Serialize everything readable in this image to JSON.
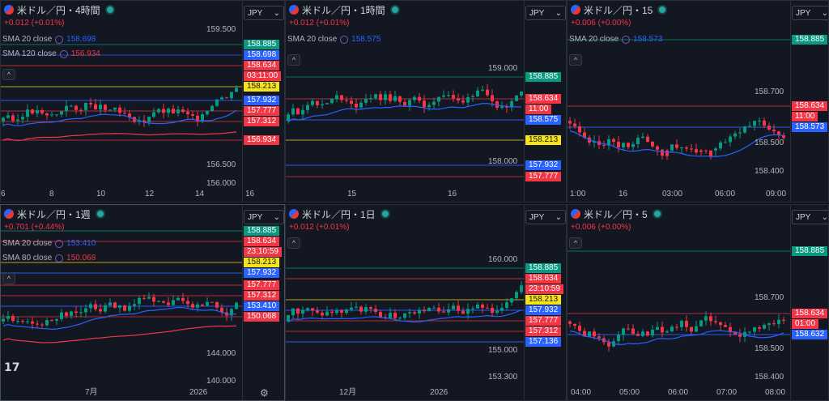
{
  "panes": [
    {
      "id": "p4h",
      "title": "米ドル／円・4時間",
      "change": "+0.012 (+0.01%)",
      "indicators": [
        {
          "label": "SMA 20 close",
          "value": "158.698",
          "color": "#2962ff"
        },
        {
          "label": "SMA 120 close",
          "value": "156.934",
          "color": "#f23645"
        }
      ],
      "currency": "JPY",
      "axis_prices": [
        "159.500",
        "156.500",
        "156.000"
      ],
      "tags": [
        {
          "text": "158.885",
          "kind": "green"
        },
        {
          "text": "158.698",
          "kind": "blue"
        },
        {
          "text": "158.634",
          "kind": "red"
        },
        {
          "text": "03:11:00",
          "kind": "red"
        },
        {
          "text": "158.213",
          "kind": "yellow"
        },
        {
          "text": "157.932",
          "kind": "blue"
        },
        {
          "text": "157.777",
          "kind": "red"
        },
        {
          "text": "157.312",
          "kind": "red"
        },
        {
          "text": "156.934",
          "kind": "red"
        }
      ],
      "time_labels": [
        "6",
        "8",
        "10",
        "12",
        "14",
        "16"
      ]
    },
    {
      "id": "p1h",
      "title": "米ドル／円・1時間",
      "change": "+0.012 (+0.01%)",
      "indicators": [
        {
          "label": "SMA 20 close",
          "value": "158.575",
          "color": "#2962ff"
        }
      ],
      "currency": "JPY",
      "axis_prices": [
        "159.000",
        "158.000"
      ],
      "tags": [
        {
          "text": "158.885",
          "kind": "green"
        },
        {
          "text": "158.634",
          "kind": "red"
        },
        {
          "text": "11:00",
          "kind": "red"
        },
        {
          "text": "158.575",
          "kind": "blue"
        },
        {
          "text": "158.213",
          "kind": "yellow"
        },
        {
          "text": "157.932",
          "kind": "blue"
        },
        {
          "text": "157.777",
          "kind": "red"
        }
      ],
      "time_labels": [
        "15",
        "16"
      ]
    },
    {
      "id": "p15",
      "title": "米ドル／円・15",
      "change": "+0.006 (+0.00%)",
      "indicators": [
        {
          "label": "SMA 20 close",
          "value": "158.573",
          "color": "#2962ff"
        }
      ],
      "currency": "JPY",
      "axis_prices": [
        "158.700",
        "158.500",
        "158.400"
      ],
      "tags": [
        {
          "text": "158.885",
          "kind": "green"
        },
        {
          "text": "158.634",
          "kind": "red"
        },
        {
          "text": "11:00",
          "kind": "red"
        },
        {
          "text": "158.573",
          "kind": "blue"
        }
      ],
      "time_labels": [
        "1:00",
        "16",
        "03:00",
        "06:00",
        "09:00"
      ]
    },
    {
      "id": "p1w",
      "title": "米ドル／円・1週",
      "change": "+0.701 (+0.44%)",
      "indicators": [
        {
          "label": "SMA 20 close",
          "value": "153.410",
          "color": "#2962ff"
        },
        {
          "label": "SMA 80 close",
          "value": "150.068",
          "color": "#f23645"
        }
      ],
      "currency": "JPY",
      "axis_prices": [
        "144.000",
        "140.000"
      ],
      "tags": [
        {
          "text": "158.885",
          "kind": "green"
        },
        {
          "text": "158.634",
          "kind": "red"
        },
        {
          "text": "23:10:59",
          "kind": "red"
        },
        {
          "text": "158.213",
          "kind": "yellow"
        },
        {
          "text": "157.932",
          "kind": "blue"
        },
        {
          "text": "157.777",
          "kind": "red"
        },
        {
          "text": "157.312",
          "kind": "red"
        },
        {
          "text": "153.410",
          "kind": "blue"
        },
        {
          "text": "150.068",
          "kind": "red"
        }
      ],
      "time_labels": [
        "7月",
        "2026"
      ]
    },
    {
      "id": "p1d",
      "title": "米ドル／円・1日",
      "change": "+0.012 (+0.01%)",
      "indicators": [],
      "currency": "JPY",
      "axis_prices": [
        "160.000",
        "155.000",
        "153.300"
      ],
      "tags": [
        {
          "text": "158.885",
          "kind": "green"
        },
        {
          "text": "158.634",
          "kind": "red"
        },
        {
          "text": "23:10:59",
          "kind": "red"
        },
        {
          "text": "158.213",
          "kind": "yellow"
        },
        {
          "text": "157.932",
          "kind": "blue"
        },
        {
          "text": "157.777",
          "kind": "red"
        },
        {
          "text": "157.312",
          "kind": "red"
        },
        {
          "text": "157.136",
          "kind": "blue"
        }
      ],
      "time_labels": [
        "12月",
        "2026"
      ]
    },
    {
      "id": "p5",
      "title": "米ドル／円・5",
      "change": "+0.006 (+0.00%)",
      "indicators": [],
      "currency": "JPY",
      "axis_prices": [
        "158.700",
        "158.500",
        "158.400"
      ],
      "tags": [
        {
          "text": "158.885",
          "kind": "green"
        },
        {
          "text": "158.634",
          "kind": "red"
        },
        {
          "text": "01:00",
          "kind": "red"
        },
        {
          "text": "158.632",
          "kind": "blue"
        }
      ],
      "time_labels": [
        "04:00",
        "05:00",
        "06:00",
        "07:00",
        "08:00"
      ]
    }
  ],
  "colors": {
    "up": "#089981",
    "down": "#f23645",
    "sma_blue": "#2962ff",
    "sma_red": "#f23645",
    "level_yellow": "#f7e31a",
    "level_green": "#089981"
  },
  "icons": {
    "logo": "TradingView",
    "settings": "gear-icon"
  },
  "logo_text": "17",
  "collapse_glyph": "^",
  "dropdown_glyph": "⌄"
}
